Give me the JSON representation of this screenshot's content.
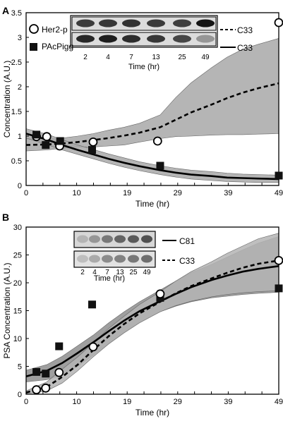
{
  "chart_data": [
    {
      "panel_letter": "A",
      "type": "line",
      "ylabel": "Concentration (A.U.)",
      "xlabel": "Time (hr)",
      "xlim": [
        0,
        49
      ],
      "ylim": [
        0,
        3.5
      ],
      "x_ticks": [
        "0",
        "4",
        "7",
        "10",
        "13",
        "16",
        "19",
        "23",
        "26",
        "29",
        "32",
        "36",
        "39",
        "42",
        "45",
        "49"
      ],
      "y_ticks": [
        "0",
        "0.5",
        "1",
        "1.5",
        "2",
        "2.5",
        "3",
        "3.5"
      ],
      "legend": [
        "Her2-p",
        "PAcPigg"
      ],
      "blot_labels": [
        "C33",
        "C33"
      ],
      "blot_times": [
        "2",
        "4",
        "7",
        "13",
        "25",
        "49"
      ],
      "blot_xlabel": "Time (hr)",
      "series": [
        {
          "name": "Her2-p",
          "marker": "open-circle",
          "x": [
            2,
            4,
            6.5,
            13,
            25.5,
            49
          ],
          "y": [
            0.99,
            0.99,
            0.8,
            0.88,
            0.9,
            3.3
          ]
        },
        {
          "name": "PAcPigg",
          "marker": "filled-square",
          "x": [
            2,
            3.8,
            6.6,
            12.8,
            26,
            49
          ],
          "y": [
            1.03,
            0.82,
            0.9,
            0.72,
            0.4,
            0.2
          ]
        }
      ],
      "fits": [
        {
          "style": "dashed",
          "x": [
            0,
            4,
            7,
            10,
            13,
            16,
            19,
            22,
            26,
            29,
            32,
            36,
            39,
            42,
            45,
            49
          ],
          "y": [
            0.82,
            0.83,
            0.85,
            0.88,
            0.92,
            0.96,
            1.01,
            1.07,
            1.18,
            1.33,
            1.48,
            1.64,
            1.77,
            1.88,
            1.97,
            2.07
          ],
          "lo": [
            0.7,
            0.72,
            0.75,
            0.78,
            0.78,
            0.8,
            0.82,
            0.88,
            0.95,
            0.99,
            1.0,
            1.02,
            1.03,
            1.03,
            1.04,
            1.05
          ],
          "hi": [
            0.96,
            0.95,
            0.96,
            1.0,
            1.05,
            1.12,
            1.18,
            1.26,
            1.43,
            1.78,
            2.08,
            2.39,
            2.6,
            2.76,
            2.86,
            2.98
          ]
        },
        {
          "style": "solid",
          "x": [
            0,
            4,
            7,
            10,
            13,
            16,
            19,
            22,
            26,
            29,
            32,
            36,
            39,
            42,
            45,
            49
          ],
          "y": [
            1.05,
            0.93,
            0.82,
            0.72,
            0.63,
            0.54,
            0.46,
            0.39,
            0.31,
            0.26,
            0.22,
            0.19,
            0.16,
            0.15,
            0.14,
            0.13
          ],
          "lo": [
            0.96,
            0.83,
            0.72,
            0.63,
            0.54,
            0.45,
            0.37,
            0.3,
            0.22,
            0.17,
            0.13,
            0.1,
            0.08,
            0.07,
            0.06,
            0.06
          ],
          "hi": [
            1.15,
            1.04,
            0.93,
            0.82,
            0.73,
            0.64,
            0.56,
            0.48,
            0.4,
            0.35,
            0.31,
            0.28,
            0.25,
            0.23,
            0.22,
            0.21
          ]
        }
      ]
    },
    {
      "panel_letter": "B",
      "type": "line",
      "ylabel": "PSA Concentration (A.U.)",
      "xlabel": "Time (hr)",
      "xlim": [
        0,
        49
      ],
      "ylim": [
        0,
        30
      ],
      "x_ticks": [
        "0",
        "4",
        "7",
        "10",
        "13",
        "16",
        "19",
        "23",
        "26",
        "29",
        "32",
        "36",
        "39",
        "42",
        "45",
        "49"
      ],
      "y_ticks": [
        "0",
        "5",
        "10",
        "15",
        "20",
        "25",
        "30"
      ],
      "blot_labels": [
        "C81",
        "C33"
      ],
      "blot_times": [
        "2",
        "4",
        "7",
        "13",
        "25",
        "49"
      ],
      "blot_xlabel": "Time (hr)",
      "series": [
        {
          "name": "",
          "marker": "filled-square",
          "x": [
            2,
            3.8,
            6.4,
            12.8,
            26,
            49
          ],
          "y": [
            4.0,
            3.7,
            8.6,
            16.1,
            17.3,
            19.0
          ]
        },
        {
          "name": "",
          "marker": "open-circle",
          "x": [
            2,
            3.8,
            6.4,
            13,
            26,
            49
          ],
          "y": [
            0.8,
            1.1,
            3.9,
            8.5,
            18.0,
            24.0
          ]
        }
      ],
      "fits": [
        {
          "style": "solid",
          "x": [
            0,
            4,
            7,
            10,
            13,
            16,
            19,
            22,
            26,
            29,
            32,
            36,
            39,
            42,
            45,
            49
          ],
          "y": [
            3.2,
            4.2,
            5.6,
            7.4,
            9.3,
            11.3,
            13.2,
            14.9,
            16.7,
            18.0,
            19.2,
            20.5,
            21.3,
            22.0,
            22.5,
            23.0
          ],
          "lo": [
            2.2,
            2.6,
            3.4,
            5.0,
            7.0,
            9.1,
            11.1,
            12.9,
            14.8,
            15.8,
            16.6,
            17.3,
            17.6,
            17.9,
            18.1,
            18.3
          ],
          "hi": [
            4.3,
            5.3,
            6.8,
            8.7,
            10.6,
            12.8,
            14.8,
            16.6,
            18.7,
            20.3,
            21.8,
            23.3,
            24.6,
            25.9,
            27.1,
            28.3
          ]
        },
        {
          "style": "dashed",
          "x": [
            0,
            4,
            7,
            10,
            13,
            16,
            19,
            22,
            26,
            29,
            32,
            36,
            39,
            42,
            45,
            49
          ],
          "y": [
            0.3,
            1.3,
            3.1,
            5.3,
            7.9,
            10.4,
            12.6,
            14.5,
            16.6,
            18.1,
            19.4,
            20.8,
            21.8,
            22.7,
            23.4,
            24.0
          ],
          "lo": [
            0.1,
            0.6,
            2.0,
            4.2,
            6.7,
            9.0,
            11.0,
            12.8,
            14.8,
            15.9,
            16.7,
            17.5,
            17.9,
            18.2,
            18.4,
            18.6
          ],
          "hi": [
            0.6,
            2.2,
            4.5,
            6.7,
            9.2,
            11.8,
            14.0,
            16.1,
            18.4,
            20.3,
            22.0,
            23.8,
            25.3,
            26.6,
            27.9,
            28.9
          ]
        }
      ]
    }
  ]
}
